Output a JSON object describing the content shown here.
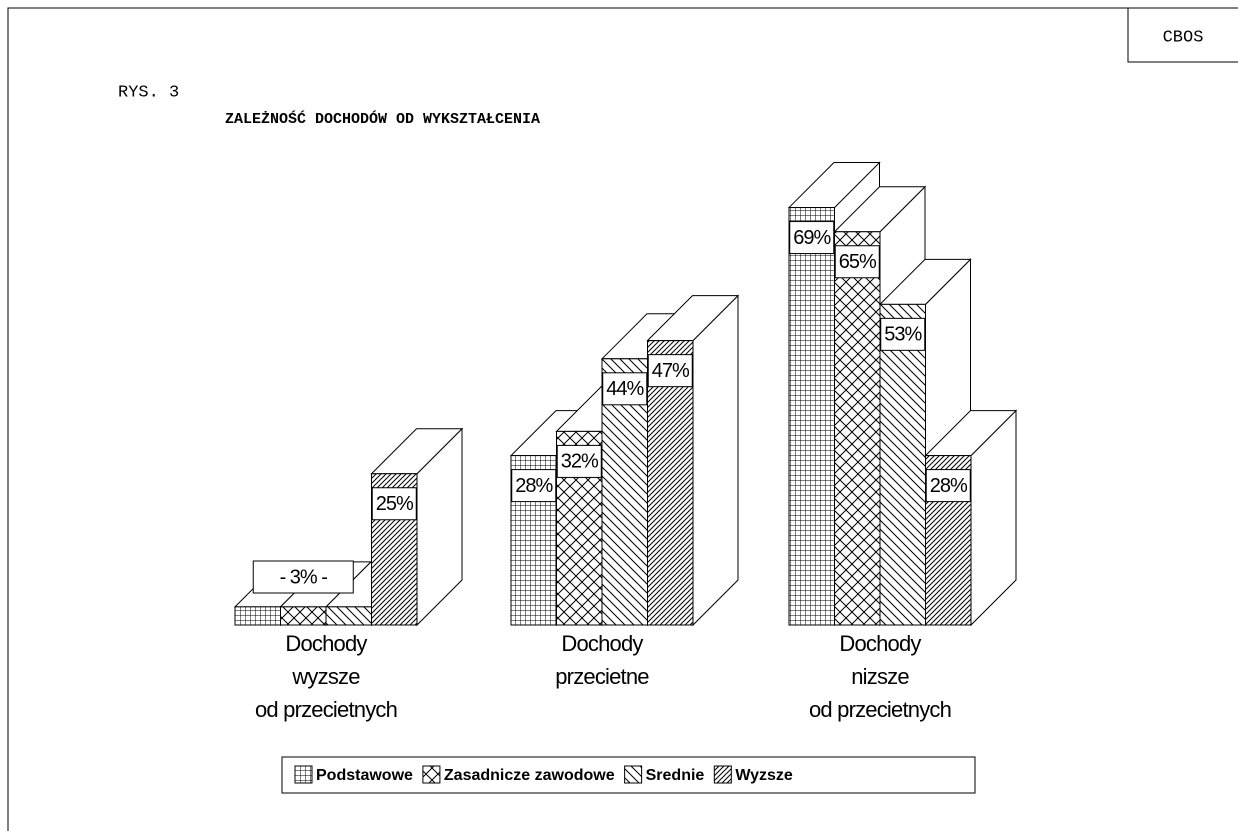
{
  "header": {
    "source": "CBOS",
    "figure": "RYS. 3"
  },
  "chart_data": {
    "type": "bar3d",
    "title": "ZALEŻNOŚĆ DOCHODÓW OD WYKSZTAŁCENIA",
    "categories": [
      [
        "Dochody",
        "wyzsze",
        "od przecietnych"
      ],
      [
        "Dochody",
        "przecietne"
      ],
      [
        "Dochody",
        "nizsze",
        "od przecietnych"
      ]
    ],
    "series": [
      {
        "name": "Podstawowe",
        "color": "#000000",
        "values": [
          3,
          28,
          69
        ],
        "value_labels": [
          null,
          "28%",
          "69%"
        ]
      },
      {
        "name": "Zasadnicze zawodowe",
        "color": "#000000",
        "values": [
          3,
          32,
          65
        ],
        "value_labels": [
          "- 3% -",
          "32%",
          "65%"
        ]
      },
      {
        "name": "Srednie",
        "color": "#000000",
        "values": [
          3,
          44,
          53
        ],
        "value_labels": [
          null,
          "44%",
          "53%"
        ]
      },
      {
        "name": "Wyzsze",
        "color": "#000000",
        "values": [
          25,
          47,
          28
        ],
        "value_labels": [
          "25%",
          "47%",
          "28%"
        ]
      }
    ],
    "legend": "bottom"
  }
}
